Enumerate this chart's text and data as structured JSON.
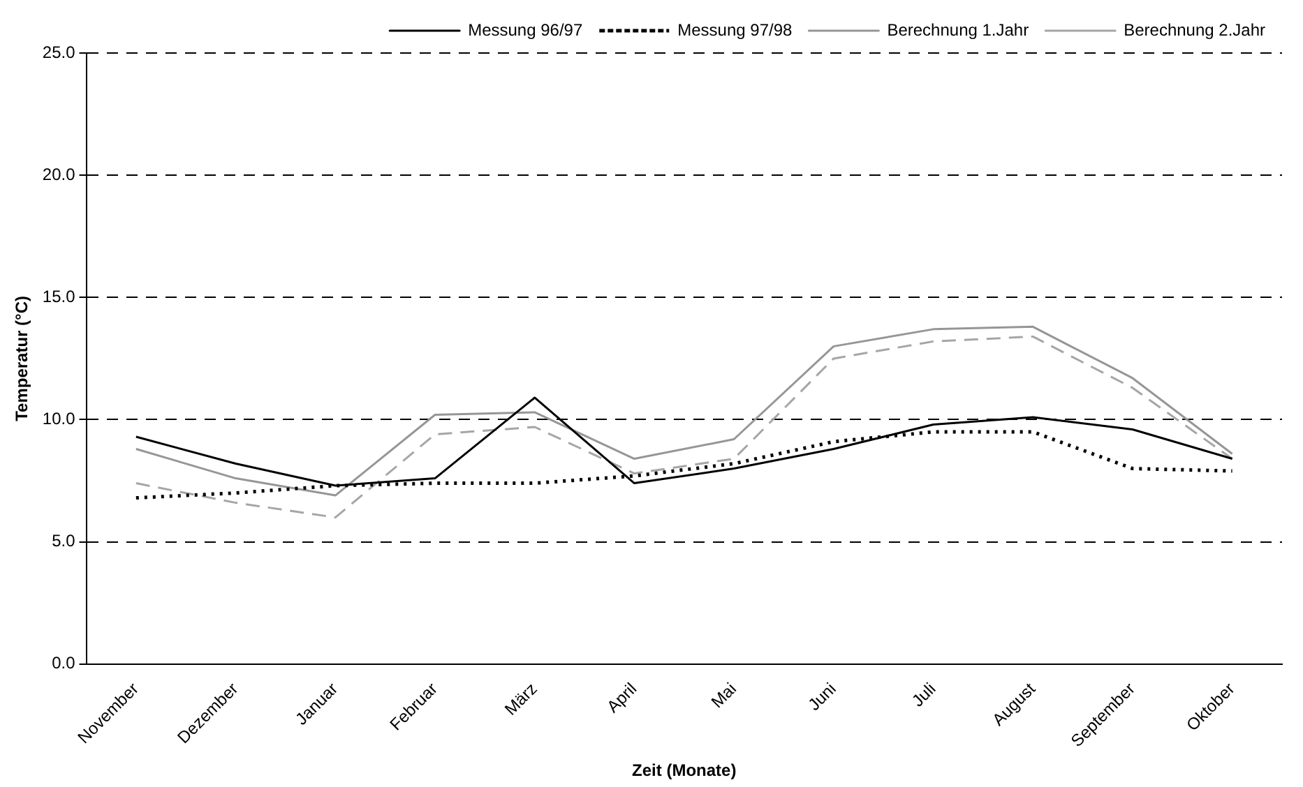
{
  "chart_data": {
    "type": "line",
    "xlabel": "Zeit (Monate)",
    "ylabel": "Temperatur (°C)",
    "categories": [
      "November",
      "Dezember",
      "Januar",
      "Februar",
      "März",
      "April",
      "Mai",
      "Juni",
      "Juli",
      "August",
      "September",
      "Oktober"
    ],
    "series": [
      {
        "name": "Messung 96/97",
        "color": "#000000",
        "line_style": "solid",
        "values": [
          9.3,
          8.2,
          7.3,
          7.6,
          10.9,
          7.4,
          8.0,
          8.8,
          9.8,
          10.1,
          9.6,
          8.4
        ]
      },
      {
        "name": "Messung 97/98",
        "color": "#000000",
        "line_style": "dotted",
        "values": [
          6.8,
          7.0,
          7.3,
          7.4,
          7.4,
          7.7,
          8.2,
          9.1,
          9.5,
          9.5,
          8.0,
          7.9
        ]
      },
      {
        "name": "Berechnung 1.Jahr",
        "color": "#969696",
        "line_style": "solid",
        "values": [
          8.8,
          7.6,
          6.9,
          10.2,
          10.3,
          8.4,
          9.2,
          13.0,
          13.7,
          13.8,
          11.7,
          8.6
        ]
      },
      {
        "name": "Berechnung 2.Jahr",
        "color": "#a6a6a6",
        "line_style": "dashed",
        "values": [
          7.4,
          6.6,
          6.0,
          9.4,
          9.7,
          7.8,
          8.4,
          12.5,
          13.2,
          13.4,
          11.3,
          8.4
        ]
      }
    ],
    "ylim": [
      0,
      25
    ],
    "yticks": [
      {
        "value": 0,
        "label": "0.0"
      },
      {
        "value": 5,
        "label": "5.0"
      },
      {
        "value": 10,
        "label": "10.0"
      },
      {
        "value": 15,
        "label": "15.0"
      },
      {
        "value": 20,
        "label": "20.0"
      },
      {
        "value": 25,
        "label": "25.0"
      }
    ],
    "grid": "y",
    "legend": "top",
    "marker": "none"
  }
}
